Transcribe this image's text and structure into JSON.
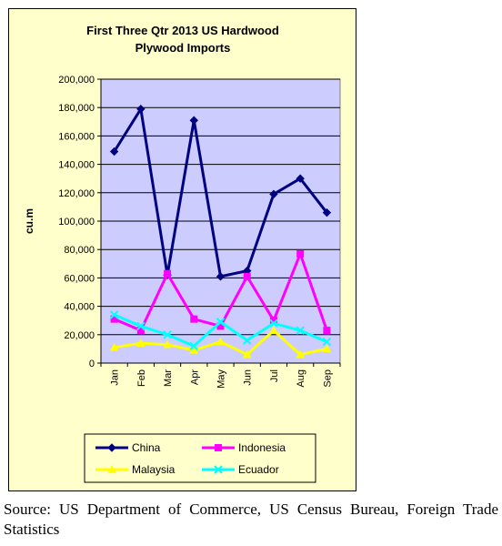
{
  "chart_data": {
    "type": "line",
    "title": "First Three Qtr 2013 US Hardwood",
    "title_line2": "Plywood Imports",
    "ylabel": "cu.m",
    "ylim": [
      0,
      200000
    ],
    "yticks": [
      0,
      20000,
      40000,
      60000,
      80000,
      100000,
      120000,
      140000,
      160000,
      180000,
      200000
    ],
    "ytick_labels": [
      "0",
      "20,000",
      "40,000",
      "60,000",
      "80,000",
      "100,000",
      "120,000",
      "140,000",
      "160,000",
      "180,000",
      "200,000"
    ],
    "categories": [
      "Jan",
      "Feb",
      "Mar",
      "Apr",
      "May",
      "Jun",
      "Jul",
      "Aug",
      "Sep"
    ],
    "grid": true,
    "legend_position": "bottom",
    "plot_background": "#ccccff",
    "chart_background": "#ffffcc",
    "series": [
      {
        "name": "China",
        "color": "#000080",
        "marker": "diamond",
        "values": [
          149000,
          179000,
          62000,
          171000,
          61000,
          65000,
          119000,
          130000,
          106000
        ]
      },
      {
        "name": "Indonesia",
        "color": "#ff00ff",
        "marker": "square",
        "values": [
          31000,
          23000,
          63000,
          31000,
          26000,
          61000,
          30000,
          77000,
          23000
        ]
      },
      {
        "name": "Malaysia",
        "color": "#ffff00",
        "marker": "triangle",
        "values": [
          11000,
          14000,
          13000,
          9000,
          15000,
          6000,
          23000,
          6000,
          10000
        ]
      },
      {
        "name": "Ecuador",
        "color": "#00ffff",
        "marker": "x",
        "values": [
          34000,
          26000,
          20000,
          12000,
          29000,
          16000,
          28000,
          23000,
          15000
        ]
      }
    ]
  },
  "source_note": "Source: US Department of Commerce, US Census Bureau, Foreign Trade Statistics"
}
